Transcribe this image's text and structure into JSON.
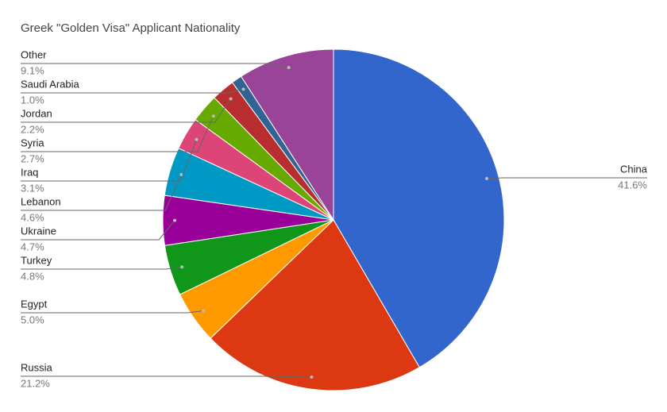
{
  "chart_data": {
    "type": "pie",
    "title": "Greek \"Golden Visa\" Applicant Nationality",
    "categories": [
      "China",
      "Russia",
      "Egypt",
      "Turkey",
      "Ukraine",
      "Lebanon",
      "Iraq",
      "Syria",
      "Jordan",
      "Saudi Arabia",
      "Other"
    ],
    "values": [
      41.6,
      21.2,
      5.0,
      4.8,
      4.7,
      4.6,
      3.1,
      2.7,
      2.2,
      1.0,
      9.1
    ],
    "value_labels": [
      "41.6%",
      "21.2%",
      "5.0%",
      "4.8%",
      "4.7%",
      "4.6%",
      "3.1%",
      "2.7%",
      "2.2%",
      "1.0%",
      "9.1%"
    ],
    "colors": [
      "#3366cc",
      "#dc3912",
      "#ff9900",
      "#109618",
      "#990099",
      "#0099c6",
      "#dd4477",
      "#66aa00",
      "#b82e2e",
      "#316395",
      "#994499"
    ]
  }
}
